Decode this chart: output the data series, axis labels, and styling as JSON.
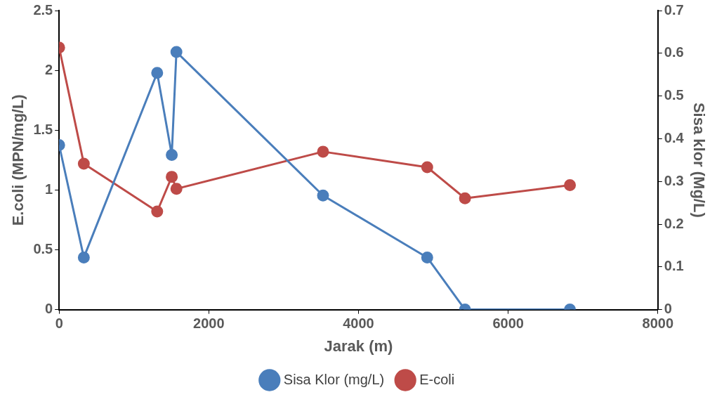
{
  "chart_data": {
    "type": "line",
    "xlabel": "Jarak (m)",
    "ylabel": "E.coli (MPN/mg/L)",
    "y2label": "Sisa klor (Mg/L)",
    "xlim": [
      0,
      8000
    ],
    "xticks": [
      0,
      2000,
      4000,
      6000,
      8000
    ],
    "ylim": [
      0,
      2.5
    ],
    "yticks": [
      0,
      0.5,
      1,
      1.5,
      2,
      2.5
    ],
    "y2lim": [
      0,
      0.7
    ],
    "y2ticks": [
      0,
      0.1,
      0.2,
      0.3,
      0.4,
      0.5,
      0.6,
      0.7
    ],
    "grid": false,
    "legend": "bottom",
    "marker": "circle",
    "line_style": "solid",
    "series": [
      {
        "name": "Sisa Klor (mg/L)",
        "color": "#4a7ebb",
        "axis": "y2",
        "x": [
          0,
          330,
          1310,
          1505,
          1567,
          3526,
          4918,
          5423,
          6825
        ],
        "values": [
          0.385,
          0.122,
          0.554,
          0.362,
          0.603,
          0.267,
          0.122,
          0,
          0
        ]
      },
      {
        "name": "E-coli",
        "color": "#be4b48",
        "axis": "y",
        "x": [
          0,
          330,
          1310,
          1505,
          1567,
          3526,
          4918,
          5423,
          6825
        ],
        "values": [
          2.19,
          1.22,
          0.82,
          1.11,
          1.01,
          1.32,
          1.19,
          0.93,
          1.04
        ]
      }
    ]
  }
}
